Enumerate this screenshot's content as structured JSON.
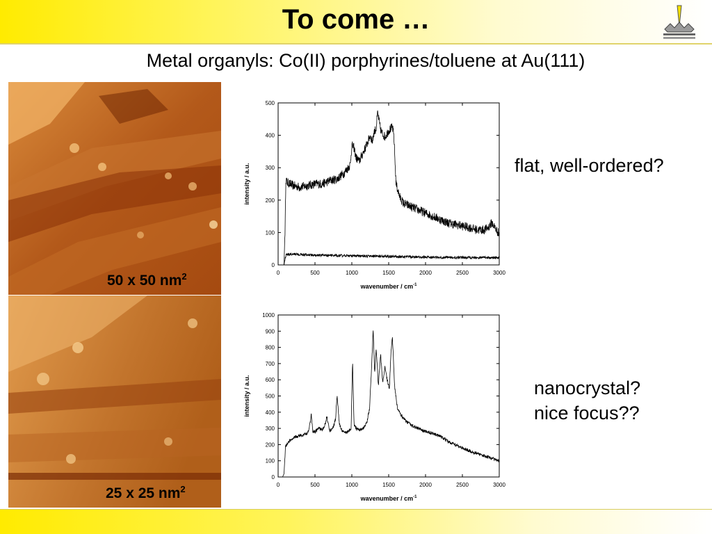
{
  "slide": {
    "title": "To come …",
    "subtitle": "Metal organyls: Co(II) porphyrines/toluene at Au(111)",
    "notes": [
      "flat, well-ordered?",
      "nanocrystal?",
      "nice focus??"
    ],
    "scale_labels": [
      {
        "text": "50 x 50 nm",
        "sup": "2"
      },
      {
        "text": "25 x 25 nm",
        "sup": "2"
      }
    ],
    "colors": {
      "header_yellow": "#ffeb00",
      "stm_dark": "#7a2800",
      "stm_light": "#f0b060"
    },
    "logo_icon": "stm-tip-logo-icon"
  },
  "chart_data": [
    {
      "type": "line",
      "xlabel": "wavenumber / cm",
      "xlabel_sup": "-1",
      "ylabel": "intensity / a.u.",
      "xlim": [
        0,
        3000
      ],
      "ylim": [
        0,
        500
      ],
      "xticks": [
        0,
        500,
        1000,
        1500,
        2000,
        2500,
        3000
      ],
      "yticks": [
        0,
        100,
        200,
        300,
        400,
        500
      ],
      "series": [
        {
          "noise": 14,
          "x": [
            0,
            80,
            95,
            105,
            120,
            200,
            300,
            400,
            500,
            600,
            700,
            800,
            900,
            950,
            980,
            1000,
            1030,
            1060,
            1100,
            1150,
            1200,
            1250,
            1280,
            1300,
            1330,
            1350,
            1380,
            1400,
            1450,
            1500,
            1550,
            1570,
            1600,
            1650,
            1700,
            1800,
            1900,
            2000,
            2100,
            2200,
            2300,
            2400,
            2500,
            2600,
            2700,
            2800,
            2850,
            2900,
            2950,
            3000
          ],
          "y": [
            0,
            0,
            120,
            265,
            255,
            245,
            240,
            245,
            250,
            250,
            260,
            265,
            285,
            300,
            310,
            370,
            360,
            330,
            320,
            345,
            370,
            400,
            380,
            410,
            420,
            470,
            430,
            410,
            395,
            415,
            425,
            400,
            250,
            210,
            190,
            180,
            170,
            160,
            150,
            140,
            130,
            125,
            120,
            115,
            108,
            108,
            115,
            130,
            112,
            95
          ]
        },
        {
          "noise": 4,
          "x": [
            0,
            80,
            95,
            110,
            200,
            500,
            1000,
            1500,
            2000,
            2500,
            3000
          ],
          "y": [
            0,
            0,
            20,
            32,
            34,
            30,
            28,
            26,
            24,
            23,
            22
          ]
        }
      ]
    },
    {
      "type": "line",
      "xlabel": "wavenumber / cm",
      "xlabel_sup": "-1",
      "ylabel": "intensity / a.u.",
      "xlim": [
        0,
        3000
      ],
      "ylim": [
        0,
        1000
      ],
      "xticks": [
        0,
        500,
        1000,
        1500,
        2000,
        2500,
        3000
      ],
      "yticks": [
        0,
        100,
        200,
        300,
        400,
        500,
        600,
        700,
        800,
        900,
        1000
      ],
      "series": [
        {
          "noise": 10,
          "x": [
            0,
            60,
            80,
            100,
            150,
            200,
            250,
            300,
            350,
            400,
            430,
            450,
            470,
            500,
            550,
            600,
            640,
            660,
            700,
            750,
            780,
            800,
            830,
            850,
            900,
            950,
            990,
            1010,
            1030,
            1060,
            1100,
            1150,
            1200,
            1240,
            1270,
            1290,
            1310,
            1330,
            1360,
            1390,
            1420,
            1450,
            1480,
            1510,
            1530,
            1550,
            1580,
            1620,
            1700,
            1800,
            1900,
            2000,
            2100,
            2200,
            2300,
            2400,
            2500,
            2600,
            2700,
            2800,
            2900,
            3000
          ],
          "y": [
            0,
            0,
            20,
            190,
            220,
            240,
            250,
            255,
            260,
            270,
            320,
            390,
            280,
            280,
            300,
            290,
            330,
            370,
            280,
            310,
            360,
            510,
            330,
            300,
            270,
            280,
            300,
            720,
            320,
            300,
            290,
            300,
            330,
            420,
            700,
            910,
            640,
            800,
            560,
            760,
            580,
            680,
            600,
            550,
            760,
            870,
            560,
            420,
            360,
            320,
            300,
            280,
            270,
            250,
            220,
            200,
            180,
            160,
            145,
            130,
            115,
            100
          ]
        }
      ]
    }
  ]
}
